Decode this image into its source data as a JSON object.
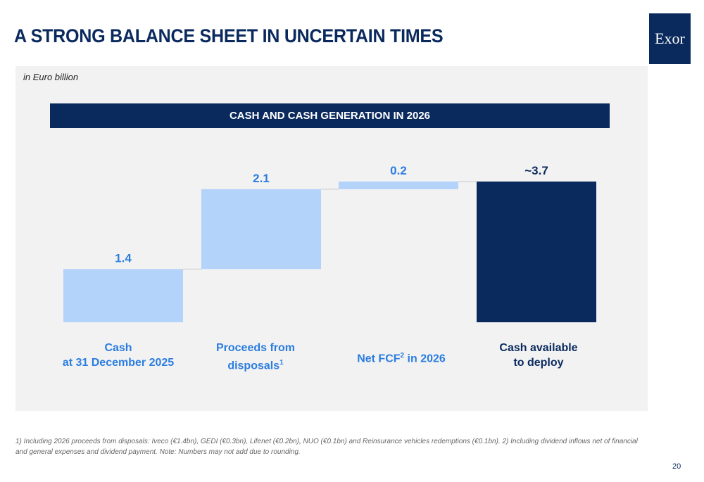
{
  "header": {
    "title": "A STRONG BALANCE SHEET IN UNCERTAIN TIMES",
    "logo_text": "Exor"
  },
  "units_note": "in Euro billion",
  "colors": {
    "navy": "#0a2a5e",
    "light_blue": "#b3d3fb",
    "label_blue": "#2b7de0"
  },
  "chart_data": {
    "type": "bar",
    "subtype": "waterfall",
    "title": "CASH AND CASH GENERATION IN 2026",
    "categories": [
      {
        "line1": "Cash",
        "line2": "at 31 December 2025",
        "sup": ""
      },
      {
        "line1": "Proceeds from",
        "line2": "disposals",
        "sup": "1"
      },
      {
        "line1": "Net FCF",
        "sup": "2",
        "line2": " in 2026"
      },
      {
        "line1": "Cash available",
        "line2": "to deploy",
        "sup": ""
      }
    ],
    "values": [
      1.4,
      2.1,
      0.2,
      3.7
    ],
    "value_labels": [
      "1.4",
      "2.1",
      "0.2",
      "~3.7"
    ],
    "bar_roles": [
      "start",
      "increase",
      "increase",
      "total"
    ],
    "ylim": [
      0,
      4.0
    ],
    "grid": false,
    "legend": "none"
  },
  "footnote": "1) Including 2026 proceeds from disposals: Iveco (€1.4bn), GEDI (€0.3bn), Lifenet (€0.2bn), NUO (€0.1bn) and Reinsurance vehicles redemptions (€0.1bn). 2) Including dividend inflows net of financial and general expenses and dividend payment. Note: Numbers may not add due to rounding.",
  "page_number": "20"
}
